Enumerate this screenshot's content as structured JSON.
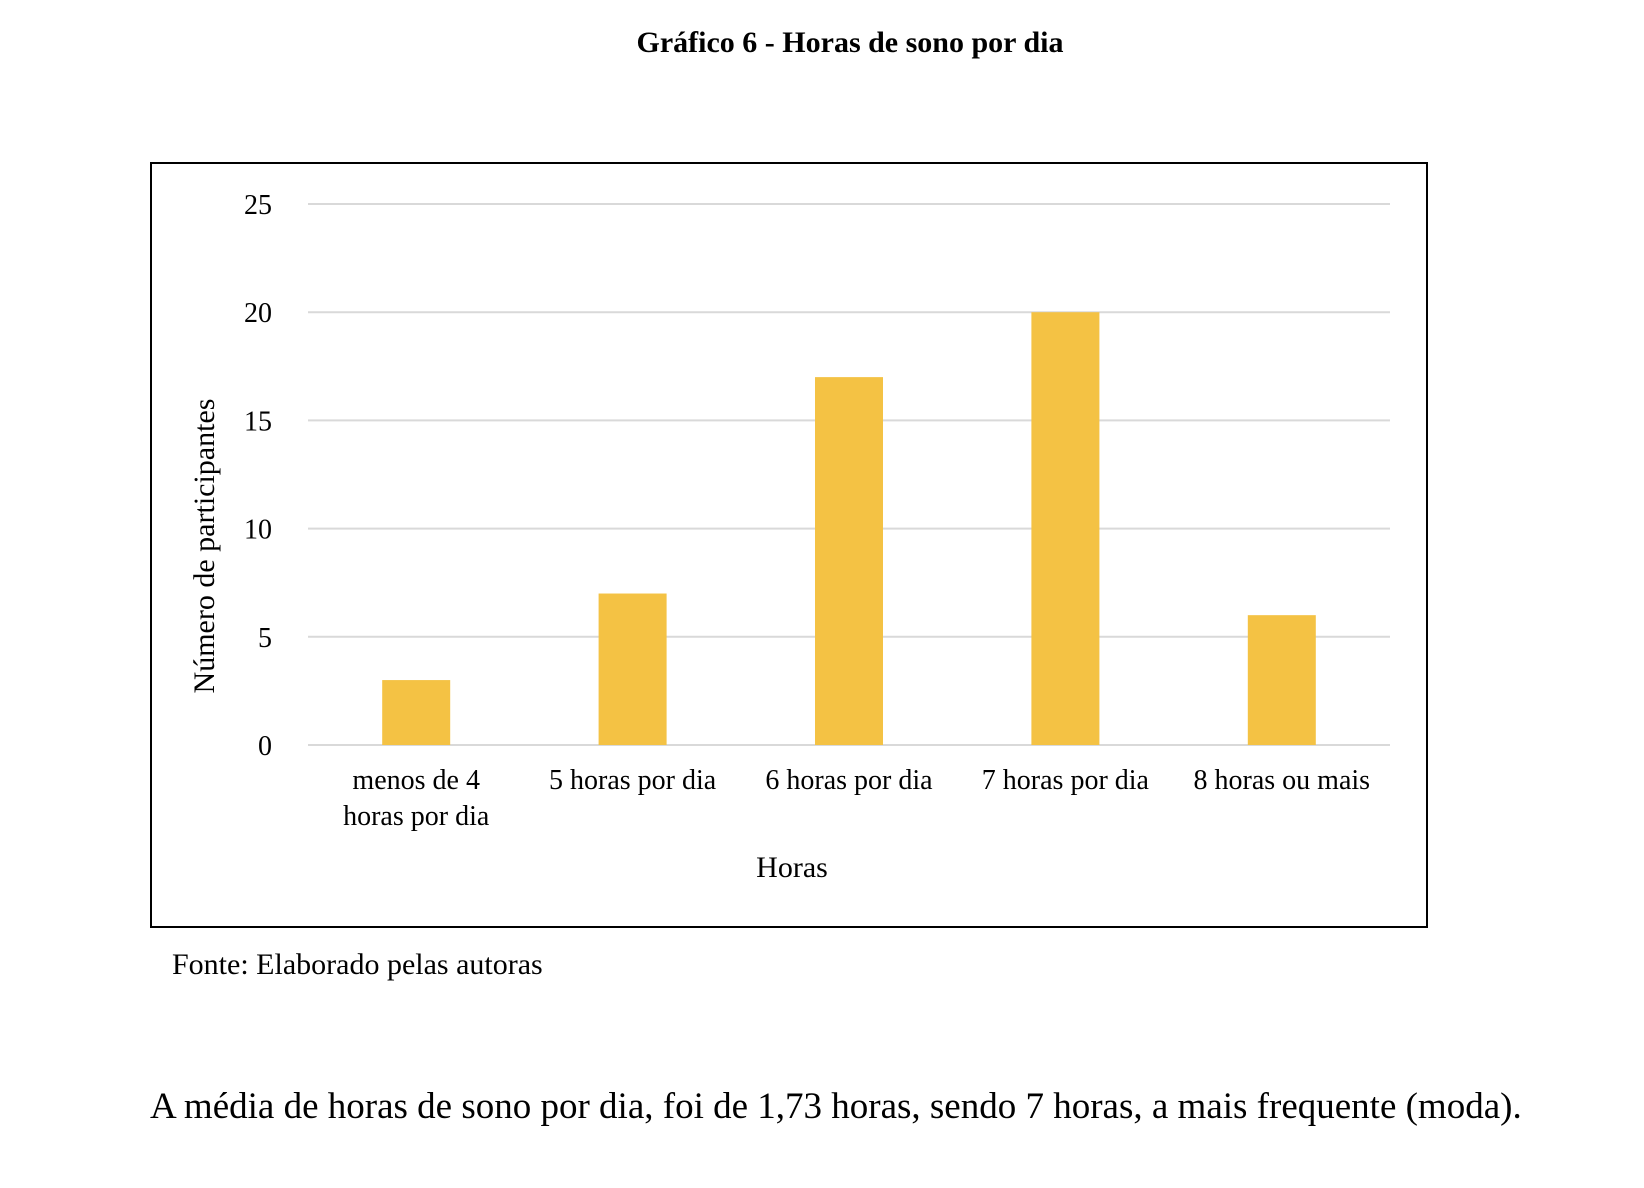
{
  "figure_title": "Gráfico 6 - Horas de sono por dia",
  "source_note": "Fonte: Elaborado pelas autoras",
  "paragraph": "A média de horas de sono por dia, foi de 1,73 horas, sendo 7 horas, a  mais frequente (moda).",
  "colors": {
    "bar": "#F4C244",
    "grid": "#D9D9D9",
    "border": "#000000"
  },
  "chart_data": {
    "type": "bar",
    "xlabel": "Horas",
    "ylabel": "Número de participantes",
    "categories": [
      [
        "menos de 4",
        "horas por dia"
      ],
      [
        "5 horas por dia"
      ],
      [
        "6 horas por dia"
      ],
      [
        "7 horas por dia"
      ],
      [
        "8 horas ou mais"
      ]
    ],
    "values": [
      3,
      7,
      17,
      20,
      6
    ],
    "ylim": [
      0,
      25
    ],
    "yticks": [
      0,
      5,
      10,
      15,
      20,
      25
    ],
    "grid": true,
    "legend": "none"
  }
}
